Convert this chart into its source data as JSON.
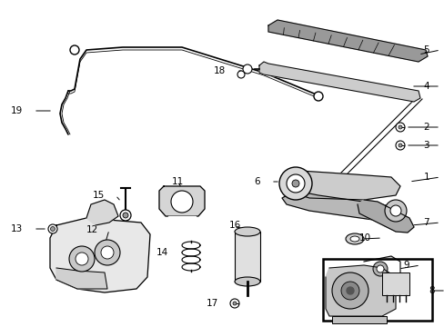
{
  "background_color": "#ffffff",
  "fig_width": 4.89,
  "fig_height": 3.6,
  "dpi": 100,
  "label_fontsize": 7.5,
  "line_color": "#000000",
  "gray_light": "#cccccc",
  "gray_mid": "#999999",
  "gray_dark": "#555555"
}
